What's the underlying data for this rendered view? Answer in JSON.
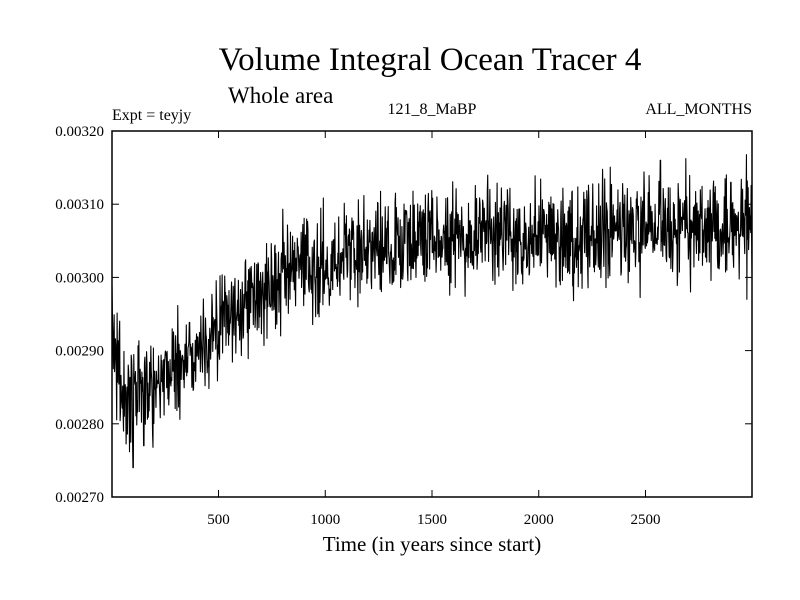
{
  "chart_data": {
    "type": "line",
    "title": "Volume Integral Ocean Tracer 4",
    "subtitle": "Whole area",
    "experiment_label": "Expt = teyjy",
    "run_label": "121_8_MaBP",
    "period_label": "ALL_MONTHS",
    "xlabel": "Time (in years since start)",
    "ylabel": "",
    "xlim": [
      1,
      2999
    ],
    "ylim": [
      0.0027,
      0.0032
    ],
    "x_ticks": [
      500,
      1000,
      1500,
      2000,
      2500
    ],
    "x_tick_labels": [
      "500",
      "1000",
      "1500",
      "2000",
      "2500"
    ],
    "y_ticks": [
      0.0027,
      0.0028,
      0.0029,
      0.003,
      0.0031,
      0.0032
    ],
    "y_tick_labels": [
      "0.00270",
      "0.00280",
      "0.00290",
      "0.00300",
      "0.00310",
      "0.00320"
    ],
    "grid": false,
    "legend": "none",
    "series": [
      {
        "name": "Volume Integral Ocean Tracer 4",
        "x": [
          1,
          10,
          25,
          50,
          75,
          100,
          150,
          200,
          250,
          300,
          400,
          500,
          600,
          700,
          800,
          900,
          1000,
          1200,
          1400,
          1600,
          1800,
          2000,
          2200,
          2400,
          2600,
          2800,
          2999
        ],
        "y": [
          0.00295,
          0.00291,
          0.00288,
          0.00284,
          0.00283,
          0.00284,
          0.00285,
          0.00286,
          0.00287,
          0.00288,
          0.0029,
          0.00293,
          0.00296,
          0.00298,
          0.003,
          0.00301,
          0.00302,
          0.00304,
          0.00305,
          0.00306,
          0.00306,
          0.00306,
          0.00306,
          0.00306,
          0.00307,
          0.00307,
          0.00307
        ],
        "noise_amplitude": 3.5e-05,
        "extremes": [
          {
            "x": 100,
            "y": 0.00274
          },
          {
            "x": 150,
            "y": 0.00277
          },
          {
            "x": 2570,
            "y": 0.00316
          },
          {
            "x": 2900,
            "y": 0.00313
          },
          {
            "x": 2975,
            "y": 0.00297
          }
        ]
      }
    ]
  }
}
